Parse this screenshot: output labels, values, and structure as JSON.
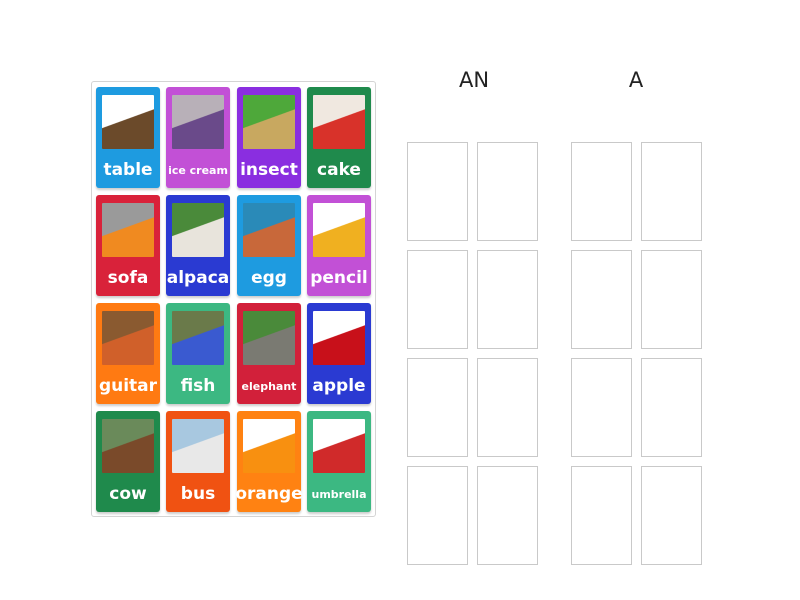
{
  "groups": [
    {
      "label": "AN"
    },
    {
      "label": "A"
    }
  ],
  "cards": [
    {
      "label": "table",
      "color": "#1e9be0",
      "image": "table-image",
      "img_colors": [
        "#ffffff",
        "#6b4a2a"
      ]
    },
    {
      "label": "ice cream",
      "color": "#c250d6",
      "image": "ice-cream-image",
      "img_colors": [
        "#b8b0b8",
        "#6a4a8a"
      ]
    },
    {
      "label": "insect",
      "color": "#8a2ee0",
      "image": "insect-image",
      "img_colors": [
        "#4ea83a",
        "#c8a860"
      ]
    },
    {
      "label": "cake",
      "color": "#1f8a4c",
      "image": "cake-image",
      "img_colors": [
        "#f0e8e0",
        "#d8322a"
      ]
    },
    {
      "label": "sofa",
      "color": "#d9223a",
      "image": "sofa-image",
      "img_colors": [
        "#9a9a9a",
        "#f08a20"
      ]
    },
    {
      "label": "alpaca",
      "color": "#2a3ad2",
      "image": "alpaca-image",
      "img_colors": [
        "#4a8a3a",
        "#e8e4dc"
      ]
    },
    {
      "label": "egg",
      "color": "#1e9be0",
      "image": "egg-image",
      "img_colors": [
        "#2a8ab8",
        "#c8683a"
      ]
    },
    {
      "label": "pencil",
      "color": "#c250d6",
      "image": "pencil-image",
      "img_colors": [
        "#ffffff",
        "#f0b020"
      ]
    },
    {
      "label": "guitar",
      "color": "#ff7a12",
      "image": "guitar-image",
      "img_colors": [
        "#8a5a30",
        "#d0602a"
      ]
    },
    {
      "label": "fish",
      "color": "#3cb882",
      "image": "fish-image",
      "img_colors": [
        "#6a7a4a",
        "#3a5ad0"
      ]
    },
    {
      "label": "elephant",
      "color": "#d2203a",
      "image": "elephant-image",
      "img_colors": [
        "#4a8a3a",
        "#7a7a72"
      ]
    },
    {
      "label": "apple",
      "color": "#2a3ad2",
      "image": "apple-image",
      "img_colors": [
        "#ffffff",
        "#c8101a"
      ]
    },
    {
      "label": "cow",
      "color": "#1f8a4c",
      "image": "cow-image",
      "img_colors": [
        "#6a8a5a",
        "#7a4a2a"
      ]
    },
    {
      "label": "bus",
      "color": "#f05212",
      "image": "bus-image",
      "img_colors": [
        "#a8c8e0",
        "#e8e8e8"
      ]
    },
    {
      "label": "orange",
      "color": "#ff8212",
      "image": "orange-image",
      "img_colors": [
        "#ffffff",
        "#f89010"
      ]
    },
    {
      "label": "umbrella",
      "color": "#3cb882",
      "image": "umbrella-image",
      "img_colors": [
        "#ffffff",
        "#d02a2a"
      ]
    }
  ]
}
